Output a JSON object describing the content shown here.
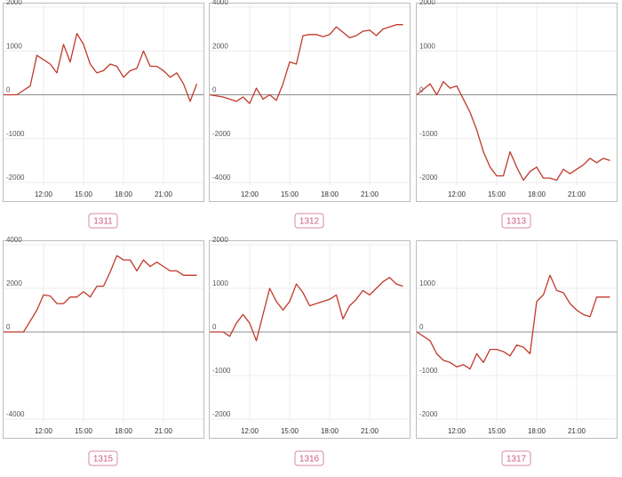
{
  "colors": {
    "line": "#c0392b",
    "badge": "#d05b82",
    "border": "#bdbdbd"
  },
  "chart_data": [
    {
      "type": "line",
      "title": "1311",
      "x_ticks": [
        "12:00",
        "15:00",
        "18:00",
        "21:00"
      ],
      "y_ticks": [
        2000,
        1000,
        0,
        -1000,
        -2000
      ],
      "ylim": [
        -2000,
        2000
      ],
      "x": [
        0,
        2,
        4,
        5,
        6,
        7,
        8,
        9,
        10,
        11,
        12,
        13,
        14,
        15,
        16,
        17,
        18,
        19,
        20,
        21,
        22,
        23,
        24,
        25,
        26,
        27,
        28,
        29
      ],
      "values": [
        0,
        0,
        200,
        900,
        800,
        700,
        500,
        1150,
        750,
        1400,
        1150,
        700,
        500,
        550,
        700,
        650,
        400,
        550,
        600,
        1000,
        650,
        650,
        550,
        400,
        500,
        250,
        -150,
        250
      ]
    },
    {
      "type": "line",
      "title": "1312",
      "x_ticks": [
        "12:00",
        "15:00",
        "18:00",
        "21:00"
      ],
      "y_ticks": [
        4000,
        2000,
        0,
        -2000,
        -4000
      ],
      "ylim": [
        -4000,
        4000
      ],
      "x": [
        0,
        2,
        3,
        4,
        5,
        6,
        7,
        8,
        9,
        10,
        11,
        12,
        13,
        14,
        15,
        16,
        17,
        18,
        19,
        20,
        21,
        22,
        23,
        24,
        25,
        26,
        27,
        28,
        29
      ],
      "values": [
        0,
        -100,
        -200,
        -300,
        -100,
        -400,
        300,
        -200,
        0,
        -250,
        500,
        1500,
        1400,
        2700,
        2750,
        2750,
        2650,
        2750,
        3100,
        2850,
        2600,
        2700,
        2900,
        2950,
        2700,
        3000,
        3100,
        3200,
        3200
      ]
    },
    {
      "type": "line",
      "title": "1313",
      "x_ticks": [
        "12:00",
        "15:00",
        "18:00",
        "21:00"
      ],
      "y_ticks": [
        2000,
        1000,
        0,
        -1000,
        -2000
      ],
      "ylim": [
        -2000,
        2000
      ],
      "x": [
        0,
        2,
        3,
        4,
        5,
        6,
        7,
        8,
        9,
        10,
        11,
        12,
        13,
        14,
        15,
        16,
        17,
        18,
        19,
        20,
        21,
        22,
        23,
        24,
        25,
        26,
        27,
        28,
        29
      ],
      "values": [
        0,
        250,
        0,
        300,
        150,
        200,
        -100,
        -400,
        -800,
        -1300,
        -1650,
        -1850,
        -1850,
        -1300,
        -1650,
        -1950,
        -1750,
        -1650,
        -1900,
        -1900,
        -1950,
        -1700,
        -1800,
        -1700,
        -1600,
        -1450,
        -1550,
        -1450,
        -1500
      ]
    },
    {
      "type": "line",
      "title": "1315",
      "x_ticks": [
        "12:00",
        "15:00",
        "18:00",
        "21:00"
      ],
      "y_ticks": [
        4000,
        2000,
        0,
        -4000
      ],
      "ylim": [
        -4000,
        4000
      ],
      "x": [
        0,
        2,
        3,
        4,
        5,
        6,
        7,
        8,
        9,
        10,
        11,
        12,
        13,
        14,
        15,
        16,
        17,
        18,
        19,
        20,
        21,
        22,
        23,
        24,
        25,
        26,
        27,
        28,
        29
      ],
      "values": [
        0,
        0,
        0,
        500,
        1000,
        1700,
        1650,
        1300,
        1300,
        1600,
        1600,
        1850,
        1600,
        2100,
        2100,
        2750,
        3500,
        3300,
        3300,
        2800,
        3300,
        3000,
        3200,
        3000,
        2800,
        2800,
        2600,
        2600,
        2600
      ]
    },
    {
      "type": "line",
      "title": "1316",
      "x_ticks": [
        "12:00",
        "15:00",
        "18:00",
        "21:00"
      ],
      "y_ticks": [
        2000,
        1000,
        0,
        -1000,
        -2000
      ],
      "ylim": [
        -2000,
        2000
      ],
      "x": [
        0,
        2,
        3,
        4,
        5,
        6,
        7,
        8,
        9,
        10,
        11,
        12,
        13,
        14,
        15,
        16,
        17,
        18,
        19,
        20,
        21,
        22,
        23,
        24,
        25,
        26,
        27,
        28,
        29
      ],
      "values": [
        0,
        0,
        -100,
        200,
        400,
        200,
        -200,
        400,
        1000,
        700,
        500,
        700,
        1100,
        900,
        600,
        650,
        700,
        750,
        850,
        300,
        600,
        750,
        950,
        850,
        1000,
        1150,
        1250,
        1100,
        1050
      ]
    },
    {
      "type": "line",
      "title": "1317",
      "x_ticks": [
        "12:00",
        "15:00",
        "18:00",
        "21:00"
      ],
      "y_ticks": [
        1000,
        0,
        -1000,
        -2000
      ],
      "ylim": [
        -2000,
        2000
      ],
      "x": [
        0,
        2,
        3,
        4,
        5,
        6,
        7,
        8,
        9,
        10,
        11,
        12,
        13,
        14,
        15,
        16,
        17,
        18,
        19,
        20,
        21,
        22,
        23,
        24,
        25,
        26,
        27,
        28,
        29
      ],
      "values": [
        0,
        -200,
        -500,
        -650,
        -700,
        -800,
        -750,
        -850,
        -500,
        -700,
        -400,
        -400,
        -450,
        -550,
        -300,
        -350,
        -500,
        700,
        850,
        1300,
        950,
        900,
        650,
        500,
        400,
        350,
        800,
        800,
        800
      ]
    }
  ]
}
